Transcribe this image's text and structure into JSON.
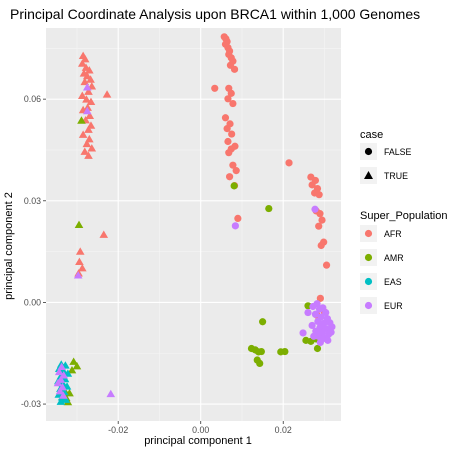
{
  "chart_data": {
    "type": "scatter",
    "title": "Principal Coordinate Analysis upon BRCA1 within 1,000 Genomes",
    "xlabel": "principal component 1",
    "ylabel": "principal component 2",
    "xlim": [
      -0.0375,
      0.034
    ],
    "ylim": [
      -0.035,
      0.081
    ],
    "x_ticks": [
      -0.02,
      0.0,
      0.02
    ],
    "x_tick_labels": [
      "-0.02",
      "0.00",
      "0.02"
    ],
    "y_ticks": [
      -0.03,
      0.0,
      0.03,
      0.06
    ],
    "y_tick_labels": [
      "-0.03",
      "0.00",
      "0.03",
      "0.06"
    ],
    "grid": true,
    "legend_position": "right",
    "legends": {
      "shape": {
        "title": "case",
        "entries": [
          {
            "label": "FALSE",
            "shape": "circle"
          },
          {
            "label": "TRUE",
            "shape": "triangle"
          }
        ]
      },
      "color": {
        "title": "Super_Population",
        "entries": [
          {
            "label": "AFR",
            "color": "#F8766D"
          },
          {
            "label": "AMR",
            "color": "#7CAE00"
          },
          {
            "label": "EAS",
            "color": "#00BFC4"
          },
          {
            "label": "EUR",
            "color": "#C77CFF"
          }
        ]
      }
    },
    "series": [
      {
        "name": "AFR",
        "color": "#F8766D",
        "points": [
          [
            0.0057,
            0.0784,
            "FALSE"
          ],
          [
            0.0061,
            0.0778,
            "FALSE"
          ],
          [
            0.0064,
            0.077,
            "FALSE"
          ],
          [
            0.006,
            0.0762,
            "FALSE"
          ],
          [
            0.0066,
            0.0752,
            "FALSE"
          ],
          [
            0.007,
            0.0742,
            "FALSE"
          ],
          [
            0.0068,
            0.0732,
            "FALSE"
          ],
          [
            0.0074,
            0.0722,
            "FALSE"
          ],
          [
            0.0078,
            0.0712,
            "FALSE"
          ],
          [
            0.0072,
            0.07,
            "FALSE"
          ],
          [
            0.0082,
            0.0688,
            "FALSE"
          ],
          [
            0.0034,
            0.0632,
            "FALSE"
          ],
          [
            0.0068,
            0.0632,
            "FALSE"
          ],
          [
            0.0074,
            0.0617,
            "FALSE"
          ],
          [
            0.0066,
            0.0601,
            "FALSE"
          ],
          [
            0.0078,
            0.0587,
            "FALSE"
          ],
          [
            0.006,
            0.0545,
            "FALSE"
          ],
          [
            0.0071,
            0.0527,
            "FALSE"
          ],
          [
            0.0064,
            0.0513,
            "FALSE"
          ],
          [
            0.0075,
            0.0497,
            "FALSE"
          ],
          [
            0.0066,
            0.0475,
            "FALSE"
          ],
          [
            0.0083,
            0.0461,
            "FALSE"
          ],
          [
            0.0074,
            0.0453,
            "FALSE"
          ],
          [
            0.0068,
            0.0442,
            "FALSE"
          ],
          [
            0.0078,
            0.0405,
            "FALSE"
          ],
          [
            0.0086,
            0.0389,
            "FALSE"
          ],
          [
            0.007,
            0.0371,
            "FALSE"
          ],
          [
            0.0082,
            0.0345,
            "FALSE"
          ],
          [
            0.009,
            0.0248,
            "FALSE"
          ],
          [
            0.0214,
            0.0412,
            "FALSE"
          ],
          [
            0.0267,
            0.037,
            "FALSE"
          ],
          [
            0.0278,
            0.036,
            "FALSE"
          ],
          [
            0.027,
            0.0347,
            "FALSE"
          ],
          [
            0.0283,
            0.0336,
            "FALSE"
          ],
          [
            0.0276,
            0.0323,
            "FALSE"
          ],
          [
            0.0287,
            0.0318,
            "FALSE"
          ],
          [
            0.028,
            0.027,
            "FALSE"
          ],
          [
            0.0289,
            0.0262,
            "FALSE"
          ],
          [
            0.0294,
            0.0243,
            "FALSE"
          ],
          [
            0.0286,
            0.0225,
            "FALSE"
          ],
          [
            0.0298,
            0.0178,
            "FALSE"
          ],
          [
            0.0292,
            0.0168,
            "FALSE"
          ],
          [
            0.0305,
            0.011,
            "FALSE"
          ],
          [
            0.029,
            0.0012,
            "FALSE"
          ],
          [
            0.03,
            -0.0028,
            "FALSE"
          ],
          [
            0.0282,
            -0.0038,
            "FALSE"
          ],
          [
            -0.0285,
            0.0728,
            "TRUE"
          ],
          [
            -0.028,
            0.0718,
            "TRUE"
          ],
          [
            -0.0287,
            0.0705,
            "TRUE"
          ],
          [
            -0.0278,
            0.0693,
            "TRUE"
          ],
          [
            -0.027,
            0.0685,
            "TRUE"
          ],
          [
            -0.0283,
            0.0676,
            "TRUE"
          ],
          [
            -0.0275,
            0.0668,
            "TRUE"
          ],
          [
            -0.0267,
            0.0658,
            "TRUE"
          ],
          [
            -0.0281,
            0.0651,
            "TRUE"
          ],
          [
            -0.0264,
            0.0638,
            "TRUE"
          ],
          [
            -0.0272,
            0.0622,
            "TRUE"
          ],
          [
            -0.0287,
            0.061,
            "TRUE"
          ],
          [
            -0.0277,
            0.0599,
            "TRUE"
          ],
          [
            -0.0266,
            0.0592,
            "TRUE"
          ],
          [
            -0.0274,
            0.0575,
            "TRUE"
          ],
          [
            -0.0285,
            0.0568,
            "TRUE"
          ],
          [
            -0.0269,
            0.0551,
            "TRUE"
          ],
          [
            -0.0279,
            0.0538,
            "TRUE"
          ],
          [
            -0.0266,
            0.0522,
            "TRUE"
          ],
          [
            -0.0272,
            0.051,
            "TRUE"
          ],
          [
            -0.0285,
            0.0495,
            "TRUE"
          ],
          [
            -0.027,
            0.0482,
            "TRUE"
          ],
          [
            -0.0276,
            0.0468,
            "TRUE"
          ],
          [
            -0.0264,
            0.0455,
            "TRUE"
          ],
          [
            -0.0281,
            0.0445,
            "TRUE"
          ],
          [
            -0.0272,
            0.0433,
            "TRUE"
          ],
          [
            -0.0227,
            0.0614,
            "TRUE"
          ],
          [
            -0.0235,
            0.02,
            "TRUE"
          ],
          [
            -0.0292,
            0.015,
            "TRUE"
          ],
          [
            -0.0294,
            0.012,
            "TRUE"
          ],
          [
            -0.0287,
            0.0101,
            "TRUE"
          ],
          [
            -0.0296,
            0.0086,
            "TRUE"
          ]
        ]
      },
      {
        "name": "AMR",
        "color": "#7CAE00",
        "points": [
          [
            0.0081,
            0.0344,
            "FALSE"
          ],
          [
            0.0165,
            0.0277,
            "FALSE"
          ],
          [
            0.015,
            -0.0057,
            "FALSE"
          ],
          [
            0.0123,
            -0.0136,
            "FALSE"
          ],
          [
            0.0132,
            -0.014,
            "FALSE"
          ],
          [
            0.014,
            -0.0146,
            "FALSE"
          ],
          [
            0.0147,
            -0.0145,
            "FALSE"
          ],
          [
            0.0137,
            -0.017,
            "FALSE"
          ],
          [
            0.0143,
            -0.018,
            "FALSE"
          ],
          [
            0.0194,
            -0.0146,
            "FALSE"
          ],
          [
            0.0204,
            -0.0145,
            "FALSE"
          ],
          [
            0.0255,
            -0.0112,
            "FALSE"
          ],
          [
            0.0267,
            -0.0115,
            "FALSE"
          ],
          [
            0.028,
            -0.0108,
            "FALSE"
          ],
          [
            0.0283,
            -0.0136,
            "FALSE"
          ],
          [
            0.026,
            -0.001,
            "FALSE"
          ],
          [
            -0.0289,
            0.0537,
            "TRUE"
          ],
          [
            -0.0295,
            0.0229,
            "TRUE"
          ],
          [
            -0.0308,
            -0.0175,
            "TRUE"
          ],
          [
            -0.03,
            -0.0188,
            "TRUE"
          ],
          [
            -0.0312,
            -0.02,
            "TRUE"
          ],
          [
            -0.0318,
            -0.0268,
            "TRUE"
          ],
          [
            -0.0326,
            -0.0282,
            "TRUE"
          ],
          [
            -0.0322,
            -0.0294,
            "TRUE"
          ],
          [
            -0.033,
            -0.026,
            "TRUE"
          ]
        ]
      },
      {
        "name": "EAS",
        "color": "#00BFC4",
        "points": [
          [
            -0.0338,
            -0.0183,
            "TRUE"
          ],
          [
            -0.0328,
            -0.0186,
            "TRUE"
          ],
          [
            -0.0343,
            -0.0196,
            "TRUE"
          ],
          [
            -0.0333,
            -0.0202,
            "TRUE"
          ],
          [
            -0.0322,
            -0.021,
            "TRUE"
          ],
          [
            -0.0339,
            -0.0218,
            "TRUE"
          ],
          [
            -0.0329,
            -0.0226,
            "TRUE"
          ],
          [
            -0.0345,
            -0.0232,
            "TRUE"
          ],
          [
            -0.0334,
            -0.024,
            "TRUE"
          ],
          [
            -0.0324,
            -0.0248,
            "TRUE"
          ],
          [
            -0.034,
            -0.0255,
            "TRUE"
          ],
          [
            -0.0331,
            -0.0264,
            "TRUE"
          ],
          [
            -0.0344,
            -0.0272,
            "TRUE"
          ],
          [
            -0.0336,
            -0.028,
            "TRUE"
          ],
          [
            -0.0327,
            -0.0287,
            "TRUE"
          ],
          [
            -0.0339,
            -0.0293,
            "TRUE"
          ]
        ]
      },
      {
        "name": "EUR",
        "color": "#C77CFF",
        "points": [
          [
            0.0084,
            0.0226,
            "FALSE"
          ],
          [
            0.0277,
            0.0275,
            "FALSE"
          ],
          [
            0.0282,
            -0.0004,
            "FALSE"
          ],
          [
            0.0272,
            -0.0012,
            "FALSE"
          ],
          [
            0.0288,
            -0.002,
            "FALSE"
          ],
          [
            0.0296,
            -0.0016,
            "FALSE"
          ],
          [
            0.0303,
            -0.003,
            "FALSE"
          ],
          [
            0.0278,
            -0.0035,
            "FALSE"
          ],
          [
            0.0292,
            -0.0043,
            "FALSE"
          ],
          [
            0.0307,
            -0.0048,
            "FALSE"
          ],
          [
            0.0284,
            -0.0056,
            "FALSE"
          ],
          [
            0.0298,
            -0.0062,
            "FALSE"
          ],
          [
            0.0313,
            -0.006,
            "FALSE"
          ],
          [
            0.027,
            -0.0068,
            "FALSE"
          ],
          [
            0.0289,
            -0.0074,
            "FALSE"
          ],
          [
            0.0304,
            -0.0078,
            "FALSE"
          ],
          [
            0.0318,
            -0.0072,
            "FALSE"
          ],
          [
            0.0279,
            -0.0085,
            "FALSE"
          ],
          [
            0.0294,
            -0.009,
            "FALSE"
          ],
          [
            0.031,
            -0.0094,
            "FALSE"
          ],
          [
            0.0285,
            -0.01,
            "FALSE"
          ],
          [
            0.0299,
            -0.0106,
            "FALSE"
          ],
          [
            0.0316,
            -0.0088,
            "FALSE"
          ],
          [
            0.0274,
            -0.01,
            "FALSE"
          ],
          [
            0.0308,
            -0.0112,
            "FALSE"
          ],
          [
            0.029,
            -0.0118,
            "FALSE"
          ],
          [
            0.0248,
            -0.009,
            "FALSE"
          ],
          [
            0.026,
            -0.003,
            "FALSE"
          ],
          [
            -0.0275,
            0.0635,
            "TRUE"
          ],
          [
            -0.0275,
            0.0565,
            "TRUE"
          ],
          [
            -0.0297,
            0.008,
            "TRUE"
          ],
          [
            -0.0218,
            -0.027,
            "TRUE"
          ],
          [
            -0.0337,
            -0.019,
            "TRUE"
          ],
          [
            -0.0343,
            -0.0205,
            "TRUE"
          ],
          [
            -0.0332,
            -0.0215,
            "TRUE"
          ],
          [
            -0.0339,
            -0.0228,
            "TRUE"
          ],
          [
            -0.0346,
            -0.0238,
            "TRUE"
          ],
          [
            -0.0335,
            -0.025,
            "TRUE"
          ],
          [
            -0.0341,
            -0.0262,
            "TRUE"
          ],
          [
            -0.0333,
            -0.0275,
            "TRUE"
          ]
        ]
      }
    ]
  }
}
